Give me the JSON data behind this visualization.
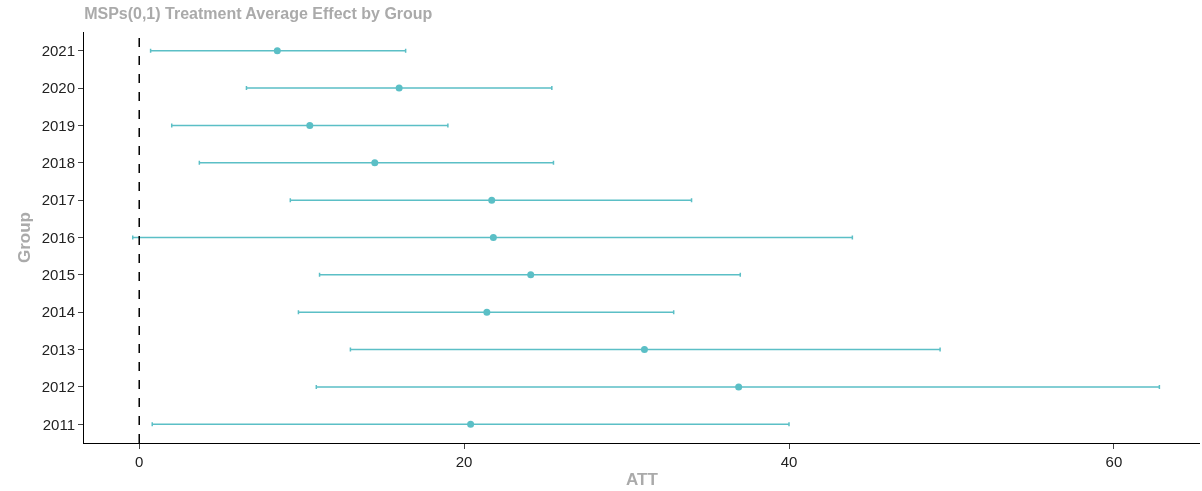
{
  "chart_data": {
    "type": "scatter",
    "orientation": "horizontal",
    "title": "MSPs(0,1) Treatment Average Effect by Group",
    "xlabel": "ATT",
    "ylabel": "Group",
    "categories": [
      "2021",
      "2020",
      "2019",
      "2018",
      "2017",
      "2016",
      "2015",
      "2014",
      "2013",
      "2012",
      "2011"
    ],
    "values": [
      8.5,
      16.0,
      10.5,
      14.5,
      21.7,
      21.8,
      24.1,
      21.4,
      31.1,
      36.9,
      20.4
    ],
    "errors": [
      [
        0.7,
        16.4
      ],
      [
        6.6,
        25.4
      ],
      [
        2.0,
        19.0
      ],
      [
        3.7,
        25.5
      ],
      [
        9.3,
        34.0
      ],
      [
        -0.4,
        43.9
      ],
      [
        11.1,
        37.0
      ],
      [
        9.8,
        32.9
      ],
      [
        13.0,
        49.3
      ],
      [
        10.9,
        62.8
      ],
      [
        0.8,
        40.0
      ]
    ],
    "color": "#5bbfc6",
    "marker": "circle",
    "grid": false,
    "legend": false,
    "xlim": [
      -3.4,
      65.3
    ],
    "xticks": [
      0,
      20,
      40,
      60
    ],
    "ref_lines": [
      {
        "axis": "x",
        "value": 0,
        "line_style": "dashed",
        "color": "#000000"
      }
    ]
  }
}
